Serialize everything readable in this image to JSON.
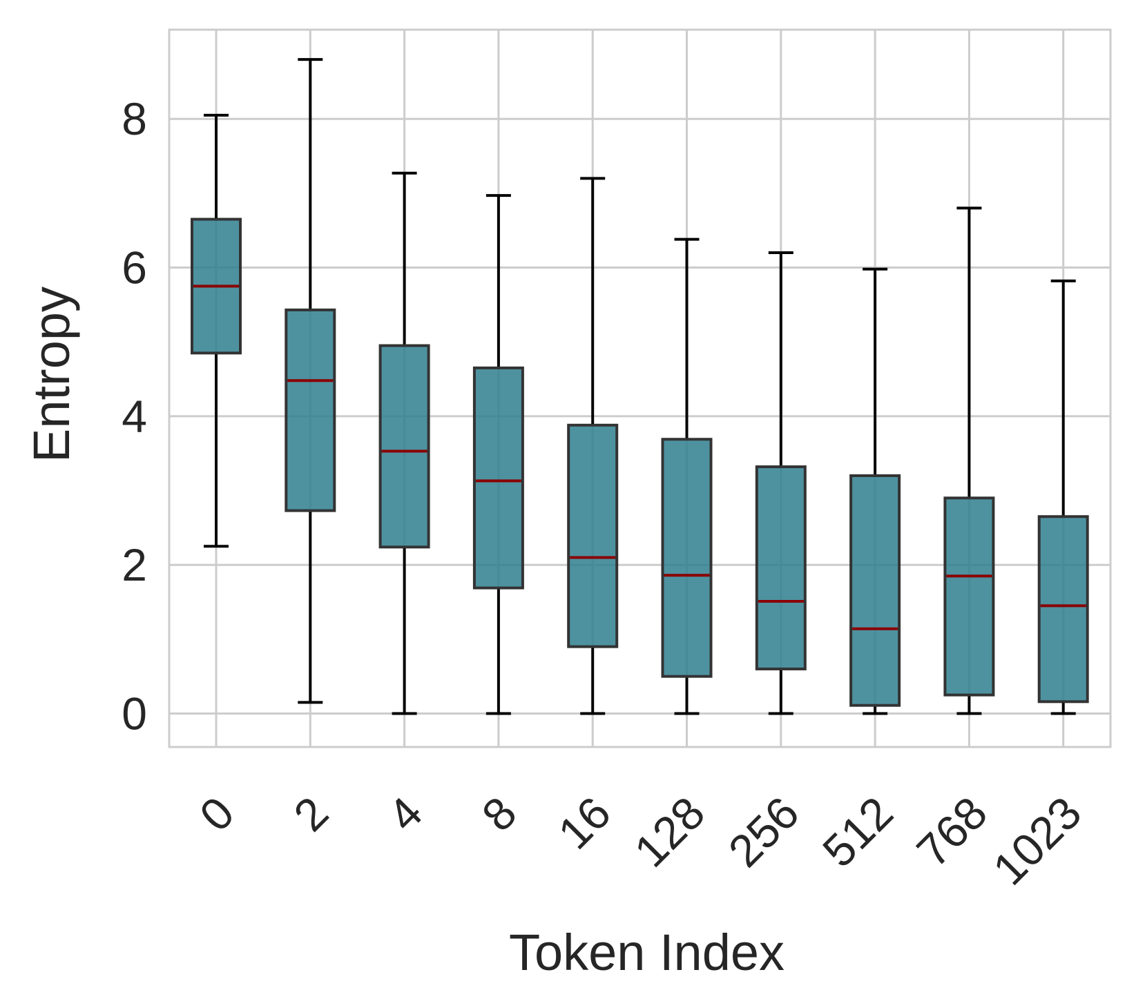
{
  "chart_data": {
    "type": "box",
    "title": "",
    "xlabel": "Token Index",
    "ylabel": "Entropy",
    "ylim": [
      -0.45,
      9.2
    ],
    "yticks": [
      0,
      2,
      4,
      6,
      8
    ],
    "grid": true,
    "categories": [
      "0",
      "2",
      "4",
      "8",
      "16",
      "128",
      "256",
      "512",
      "768",
      "1023"
    ],
    "boxes": [
      {
        "whisker_low": 2.25,
        "q1": 4.85,
        "median": 5.75,
        "q3": 6.65,
        "whisker_high": 8.05
      },
      {
        "whisker_low": 0.15,
        "q1": 2.73,
        "median": 4.48,
        "q3": 5.43,
        "whisker_high": 8.8
      },
      {
        "whisker_low": 0.0,
        "q1": 2.24,
        "median": 3.53,
        "q3": 4.95,
        "whisker_high": 7.27
      },
      {
        "whisker_low": 0.0,
        "q1": 1.69,
        "median": 3.13,
        "q3": 4.65,
        "whisker_high": 6.97
      },
      {
        "whisker_low": 0.0,
        "q1": 0.9,
        "median": 2.1,
        "q3": 3.88,
        "whisker_high": 7.2
      },
      {
        "whisker_low": 0.0,
        "q1": 0.5,
        "median": 1.86,
        "q3": 3.69,
        "whisker_high": 6.38
      },
      {
        "whisker_low": 0.0,
        "q1": 0.6,
        "median": 1.51,
        "q3": 3.32,
        "whisker_high": 6.2
      },
      {
        "whisker_low": 0.0,
        "q1": 0.11,
        "median": 1.14,
        "q3": 3.2,
        "whisker_high": 5.98
      },
      {
        "whisker_low": 0.0,
        "q1": 0.25,
        "median": 1.85,
        "q3": 2.9,
        "whisker_high": 6.8
      },
      {
        "whisker_low": 0.0,
        "q1": 0.16,
        "median": 1.45,
        "q3": 2.65,
        "whisker_high": 5.82
      }
    ],
    "colors": {
      "box_fill": "#2f7f8f",
      "box_edge": "#333333",
      "median": "#8b0000",
      "whisker": "#000000",
      "grid": "#cccccc",
      "text": "#262626"
    }
  }
}
